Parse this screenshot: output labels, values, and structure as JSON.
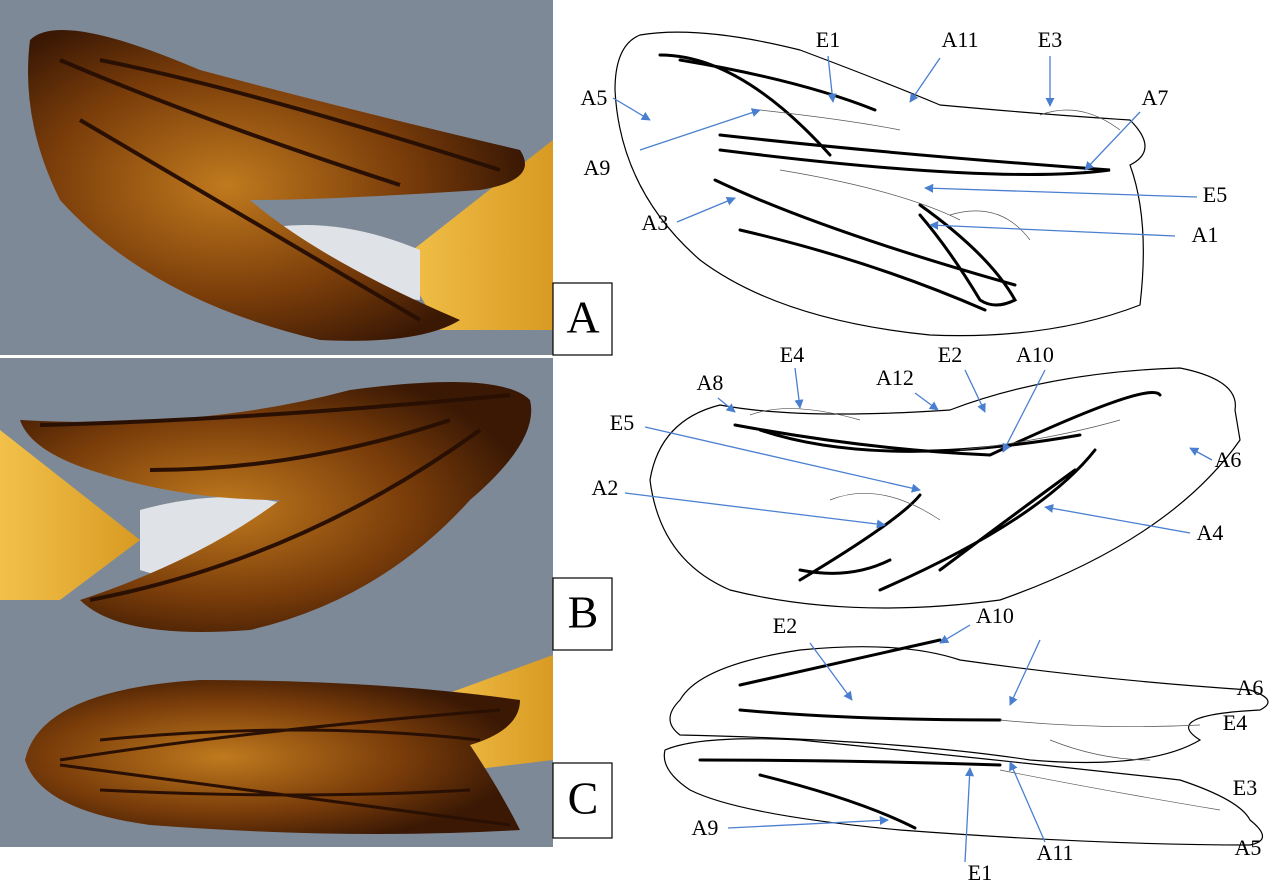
{
  "panels": [
    {
      "letter": "A",
      "labels": [
        "E1",
        "A11",
        "E3",
        "A5",
        "A7",
        "A9",
        "E5",
        "A3",
        "A1"
      ]
    },
    {
      "letter": "B",
      "labels": [
        "A8",
        "E4",
        "A12",
        "E2",
        "A10",
        "E5",
        "A6",
        "A2",
        "A4"
      ]
    },
    {
      "letter": "C",
      "labels": [
        "A10",
        "E2",
        "A6",
        "E4",
        "E3",
        "A9",
        "A5",
        "A11",
        "E1"
      ]
    }
  ]
}
